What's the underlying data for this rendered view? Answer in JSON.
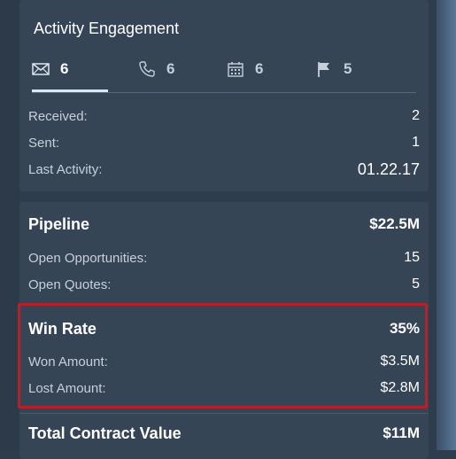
{
  "activity": {
    "title": "Activity Engagement",
    "tabs": [
      {
        "icon": "envelope-icon",
        "count": "6",
        "active": true
      },
      {
        "icon": "phone-icon",
        "count": "6",
        "active": false
      },
      {
        "icon": "calendar-icon",
        "count": "6",
        "active": false
      },
      {
        "icon": "flag-icon",
        "count": "5",
        "active": false
      }
    ],
    "rows": [
      {
        "label": "Received:",
        "value": "2"
      },
      {
        "label": "Sent:",
        "value": "1"
      },
      {
        "label": "Last Activity:",
        "value": "01.22.17"
      }
    ]
  },
  "pipeline": {
    "label": "Pipeline",
    "value": "$22.5M",
    "rows": [
      {
        "label": "Open Opportunities:",
        "value": "15"
      },
      {
        "label": "Open Quotes:",
        "value": "5"
      }
    ]
  },
  "win_rate": {
    "label": "Win Rate",
    "value": "35%",
    "rows": [
      {
        "label": "Won Amount:",
        "value": "$3.5M"
      },
      {
        "label": "Lost Amount:",
        "value": "$2.8M"
      }
    ]
  },
  "total_contract": {
    "label": "Total Contract Value",
    "value": "$11M"
  },
  "colors": {
    "background": "#2e3d4d",
    "card": "#354556",
    "highlight": "#b3212b",
    "label": "#c7d0da"
  }
}
